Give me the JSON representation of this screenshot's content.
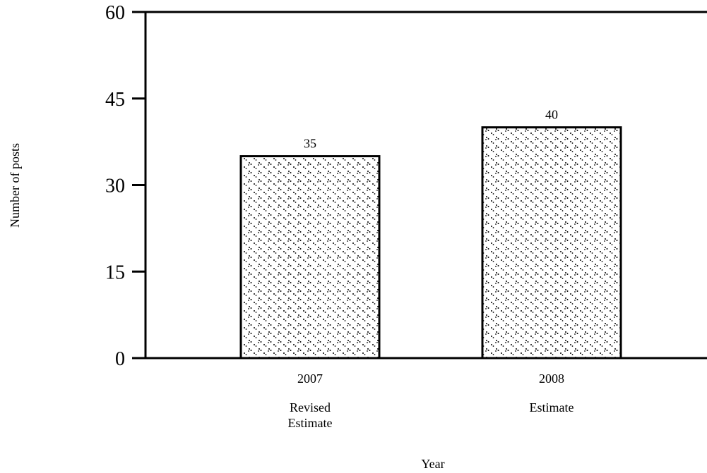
{
  "chart_data": {
    "type": "bar",
    "categories": [
      "2007",
      "2008"
    ],
    "category_sublabels": [
      "Revised\nEstimate",
      "Estimate"
    ],
    "values": [
      35,
      40
    ],
    "data_labels": [
      "35",
      "40"
    ],
    "title": "",
    "xlabel": "Year",
    "ylabel": "Number of posts",
    "ylim": [
      0,
      60
    ],
    "yticks": [
      0,
      15,
      30,
      45,
      60
    ],
    "grid": false,
    "legend": "none",
    "bar_fill": "dotted pattern",
    "colors": {
      "bar_stroke": "#000000",
      "bar_fill": "#ffffff",
      "dots": "#000000",
      "axes": "#000000"
    }
  }
}
